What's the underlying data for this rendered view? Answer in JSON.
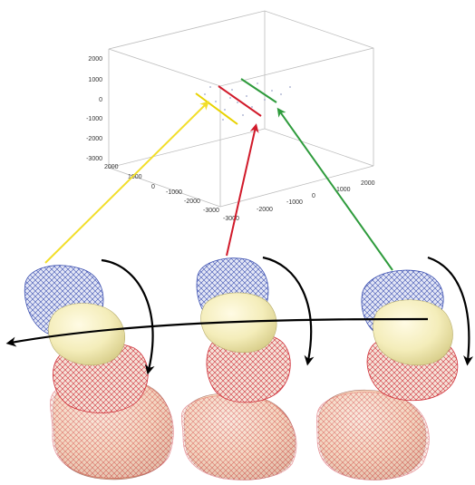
{
  "plot3d": {
    "z_ticks": [
      "2000",
      "1000",
      "0",
      "-1000",
      "-2000",
      "-3000"
    ],
    "x_ticks": [
      "2000",
      "1000",
      "0",
      "-1000",
      "-2000",
      "-3000"
    ],
    "y_ticks": [
      "-3000",
      "-2000",
      "-1000",
      "0",
      "1000",
      "2000"
    ],
    "lines": [
      {
        "name": "yellow",
        "color": "#e8d200"
      },
      {
        "name": "red",
        "color": "#d11a2a"
      },
      {
        "name": "green",
        "color": "#2e9b3c"
      }
    ]
  },
  "pointers": [
    {
      "name": "yellow-arrow",
      "color": "#f2de2a"
    },
    {
      "name": "red-arrow",
      "color": "#d11a2a"
    },
    {
      "name": "green-arrow",
      "color": "#2e9b3c"
    }
  ],
  "structures": [
    {
      "name": "left"
    },
    {
      "name": "center"
    },
    {
      "name": "right"
    }
  ],
  "colors": {
    "mesh_blue": "#3b4fb0",
    "mesh_red": "#d0303a",
    "surface_cream": "#f6f0c2",
    "surface_peach": "#f3c5a0",
    "rotation_arrow": "#000000"
  }
}
